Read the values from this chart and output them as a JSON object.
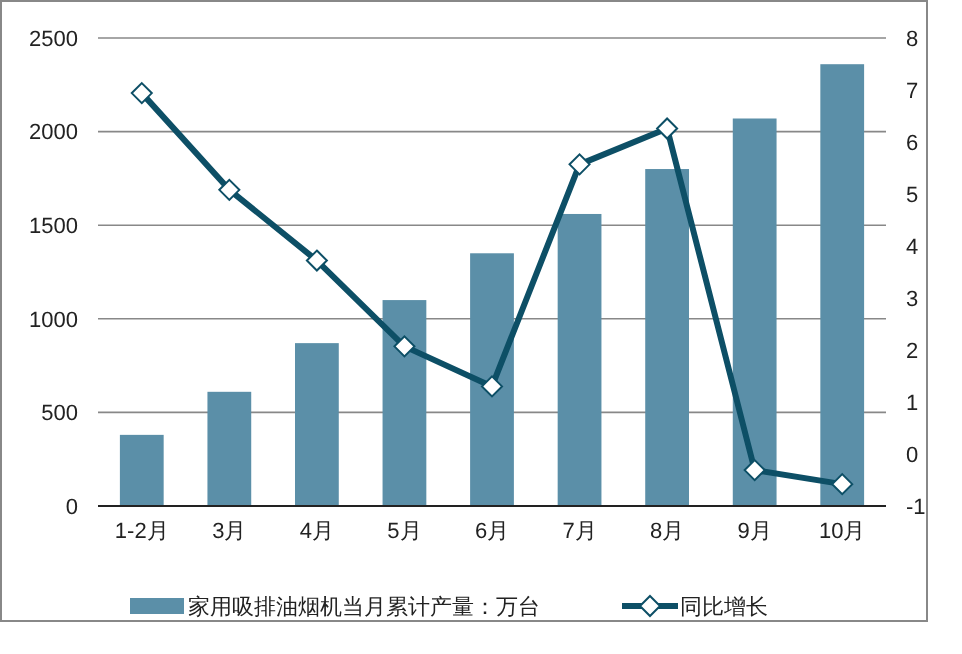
{
  "chart_data": {
    "type": "bar",
    "categories": [
      "1-2月",
      "3月",
      "4月",
      "5月",
      "6月",
      "7月",
      "8月",
      "9月",
      "10月"
    ],
    "series": [
      {
        "name": "家用吸排油烟机当月累计产量：万台",
        "color": "#5b8fa8",
        "values": [
          380,
          610,
          870,
          1100,
          1350,
          1560,
          1800,
          2070,
          2360
        ]
      },
      {
        "name": "同比增长",
        "type": "line",
        "axis": "y2",
        "color": "#0d4f66",
        "marker": "diamond",
        "values": [
          6.94,
          5.08,
          3.72,
          2.07,
          1.3,
          5.57,
          6.26,
          -0.31,
          -0.58
        ]
      }
    ],
    "ylim": [
      0,
      2500
    ],
    "yticks": [
      0,
      500,
      1000,
      1500,
      2000,
      2500
    ],
    "y2lim": [
      -1,
      8
    ],
    "y2ticks": [
      -1,
      0,
      1,
      2,
      3,
      4,
      5,
      6,
      7,
      8
    ],
    "grid": "y",
    "legend": "bottom"
  }
}
